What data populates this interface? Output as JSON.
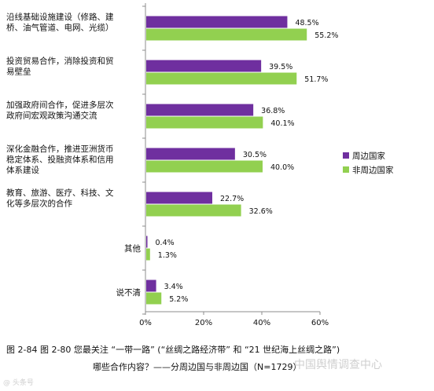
{
  "chart_data": {
    "type": "bar",
    "orientation": "horizontal",
    "categories": [
      [
        "沿线基础设施建设（修路、建",
        "桥、油气管道、电网、光缆）"
      ],
      [
        "投资贸易合作，消除投资和贸",
        "易壁垒"
      ],
      [
        "加强政府间合作，促进多层次",
        "政府间宏观政策沟通交流"
      ],
      [
        "深化金融合作，推进亚洲货币",
        "稳定体系、投融资体系和信用",
        "体系建设"
      ],
      [
        "教育、旅游、医疗、科技、文",
        "化等多层次的合作"
      ],
      [
        "其他"
      ],
      [
        "说不清"
      ]
    ],
    "series": [
      {
        "name": "周边国家",
        "values": [
          48.5,
          39.5,
          36.8,
          30.5,
          22.7,
          0.4,
          3.4
        ],
        "labels": [
          "48.5%",
          "39.5%",
          "36.8%",
          "30.5%",
          "22.7%",
          "0.4%",
          "3.4%"
        ],
        "color": "#6f2f9f"
      },
      {
        "name": "非周边国家",
        "values": [
          55.2,
          51.7,
          40.1,
          40.0,
          32.6,
          1.3,
          5.2
        ],
        "labels": [
          "55.2%",
          "51.7%",
          "40.1%",
          "40.0%",
          "32.6%",
          "1.3%",
          "5.2%"
        ],
        "color": "#92d050"
      }
    ],
    "xlim": [
      0,
      60
    ],
    "ticks": [
      0,
      20,
      40,
      60
    ],
    "tick_labels": [
      "0%",
      "20%",
      "40%",
      "60%"
    ],
    "legend_position": "right",
    "grid": false
  },
  "caption": {
    "line1": "图 2-84  图 2-80   您最关注 “一带一路” (“丝绸之路经济带” 和 “21 世纪海上丝绸之路”)",
    "line2": "哪些合作内容？——分周边国与非周边国（N=1729）"
  },
  "watermark": "中国舆情调查中心",
  "watermark_corner": "@ 头条号"
}
